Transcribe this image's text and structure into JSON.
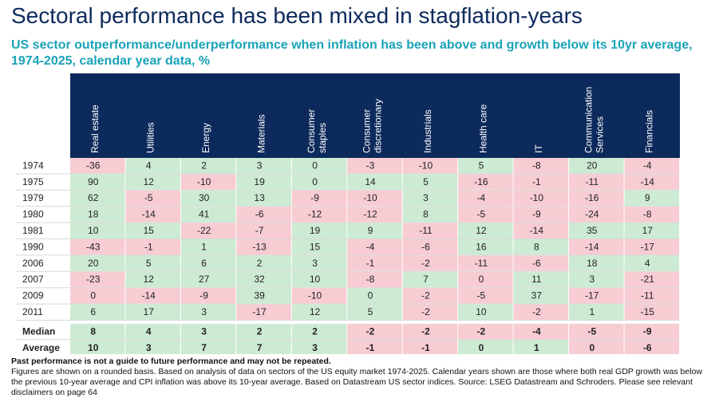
{
  "title": "Sectoral performance has been mixed in stagflation-years",
  "subtitle": "US sector outperformance/underperformance when inflation has been above and growth below its 10yr average, 1974-2025, calendar year data, %",
  "table": {
    "columns": [
      [
        "Real estate"
      ],
      [
        "Utilities"
      ],
      [
        "Energy"
      ],
      [
        "Materials"
      ],
      [
        "Consumer",
        "staples"
      ],
      [
        "Consumer",
        "discretionary"
      ],
      [
        "Industrials"
      ],
      [
        "Health care"
      ],
      [
        "IT"
      ],
      [
        "Communication",
        "Services"
      ],
      [
        "Financials"
      ]
    ],
    "rows": [
      {
        "label": "1974",
        "values": [
          -36,
          4,
          2,
          3,
          0,
          -3,
          -10,
          5,
          -8,
          20,
          -4
        ]
      },
      {
        "label": "1975",
        "values": [
          90,
          12,
          -10,
          19,
          0,
          14,
          5,
          -16,
          -1,
          -11,
          -14
        ]
      },
      {
        "label": "1979",
        "values": [
          62,
          -5,
          30,
          13,
          -9,
          -10,
          3,
          -4,
          -10,
          -16,
          9
        ]
      },
      {
        "label": "1980",
        "values": [
          18,
          -14,
          41,
          -6,
          -12,
          -12,
          8,
          -5,
          -9,
          -24,
          -8
        ]
      },
      {
        "label": "1981",
        "values": [
          10,
          15,
          -22,
          -7,
          19,
          9,
          -11,
          12,
          -14,
          35,
          17
        ]
      },
      {
        "label": "1990",
        "values": [
          -43,
          -1,
          1,
          -13,
          15,
          -4,
          -6,
          16,
          8,
          -14,
          -17
        ]
      },
      {
        "label": "2006",
        "values": [
          20,
          5,
          6,
          2,
          3,
          -1,
          -2,
          -11,
          -6,
          18,
          4
        ]
      },
      {
        "label": "2007",
        "values": [
          -23,
          12,
          27,
          32,
          10,
          -8,
          7,
          0,
          11,
          3,
          -21
        ]
      },
      {
        "label": "2009",
        "values": [
          0,
          -14,
          -9,
          39,
          -10,
          0,
          -2,
          -5,
          37,
          -17,
          -11
        ]
      },
      {
        "label": "2011",
        "values": [
          6,
          17,
          3,
          -17,
          12,
          5,
          -2,
          10,
          -2,
          1,
          -15
        ]
      }
    ],
    "summary": [
      {
        "label": "Median",
        "values": [
          8,
          4,
          3,
          2,
          2,
          -2,
          -2,
          -2,
          -4,
          -5,
          -9
        ]
      },
      {
        "label": "Average",
        "values": [
          10,
          3,
          7,
          7,
          3,
          -1,
          -1,
          0,
          1,
          0,
          -6
        ]
      }
    ],
    "palette": {
      "g": "#cdebd3",
      "r": "#f7ccd2"
    },
    "row_shading": [
      "rggggrrgrgr",
      "ggrgggg rrrr",
      "grggrrgrrrg",
      "grgrrrgrrrr",
      "ggrrggrgrgg",
      "rrgrgrrggrr",
      "gggggrrrrgg",
      "rggggrgrggr",
      "rrrgrgrrgrr",
      "gggrggrgrgr"
    ],
    "summary_shading": [
      "gggggrrrrrr",
      "gggggrrggrr"
    ]
  },
  "footer": {
    "disclaimer": "Past performance is not a guide to future performance and may not be repeated.",
    "note": "Figures are shown on a rounded basis. Based on analysis of data on sectors of the US equity market 1974-2025. Calendar years shown are those where both real GDP growth was below the previous 10-year average and CPI inflation was above its 10-year average. Based on Datastream US sector indices. Source: LSEG Datastream and Schroders. Please see relevant disclaimers on page 64"
  }
}
